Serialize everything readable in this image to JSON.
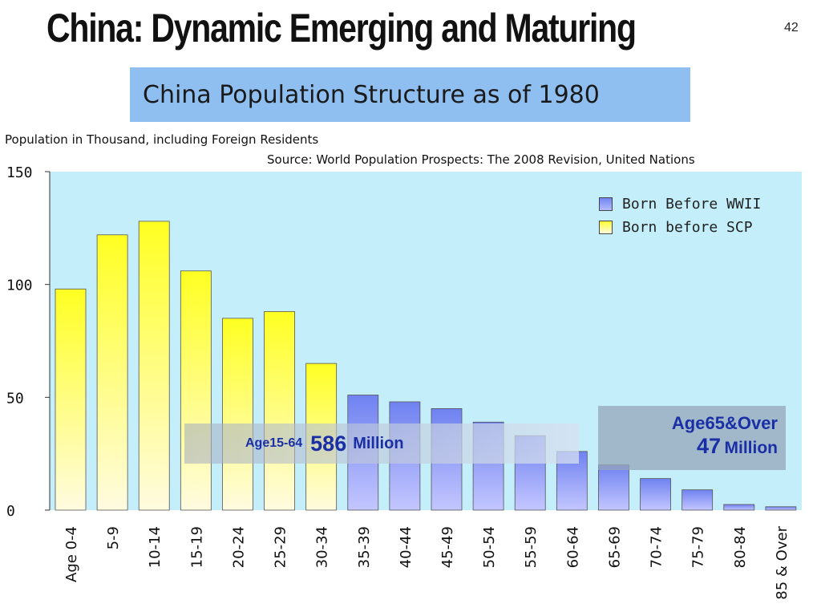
{
  "slide": {
    "title": "China: Dynamic Emerging and Maturing",
    "page_number": "42"
  },
  "chart_data": {
    "type": "bar",
    "title": "China Population Structure as of 1980",
    "ylabel": "Population in Thousand, including Foreign Residents",
    "source": "Source: World Population Prospects: The 2008 Revision, United Nations",
    "ylim": [
      0,
      150
    ],
    "yticks": [
      "0",
      "50",
      "100",
      "150"
    ],
    "grid": false,
    "legend_position": "top-right",
    "categories": [
      "Age 0-4",
      "5-9",
      "10-14",
      "15-19",
      "20-24",
      "25-29",
      "30-34",
      "35-39",
      "40-44",
      "45-49",
      "50-54",
      "55-59",
      "60-64",
      "65-69",
      "70-74",
      "75-79",
      "80-84",
      "85 & Over"
    ],
    "values": [
      98,
      122,
      128,
      106,
      85,
      88,
      65,
      51,
      48,
      45,
      39,
      33,
      26,
      20,
      14,
      9,
      2.5,
      1.5
    ],
    "series": [
      {
        "name": "Born Before WWII",
        "color": "#7f8ff0",
        "categories": [
          "35-39",
          "40-44",
          "45-49",
          "50-54",
          "55-59",
          "60-64",
          "65-69",
          "70-74",
          "75-79",
          "80-84",
          "85 & Over"
        ]
      },
      {
        "name": "Born before SCP",
        "color": "#ffff33",
        "categories": [
          "Age 0-4",
          "5-9",
          "10-14",
          "15-19",
          "20-24",
          "25-29",
          "30-34"
        ]
      }
    ],
    "annotations": [
      {
        "label": "Age15-64",
        "value": "586",
        "unit": "Million"
      },
      {
        "label": "Age65&Over",
        "value": "47",
        "unit": "Million"
      }
    ],
    "colors": {
      "plot_background": "#c4eefa",
      "blue_series": "#7f8ff0",
      "yellow_series": "#ffff33",
      "annotation_text": "#1a2fa5",
      "title_box": "#8fbff0"
    }
  }
}
